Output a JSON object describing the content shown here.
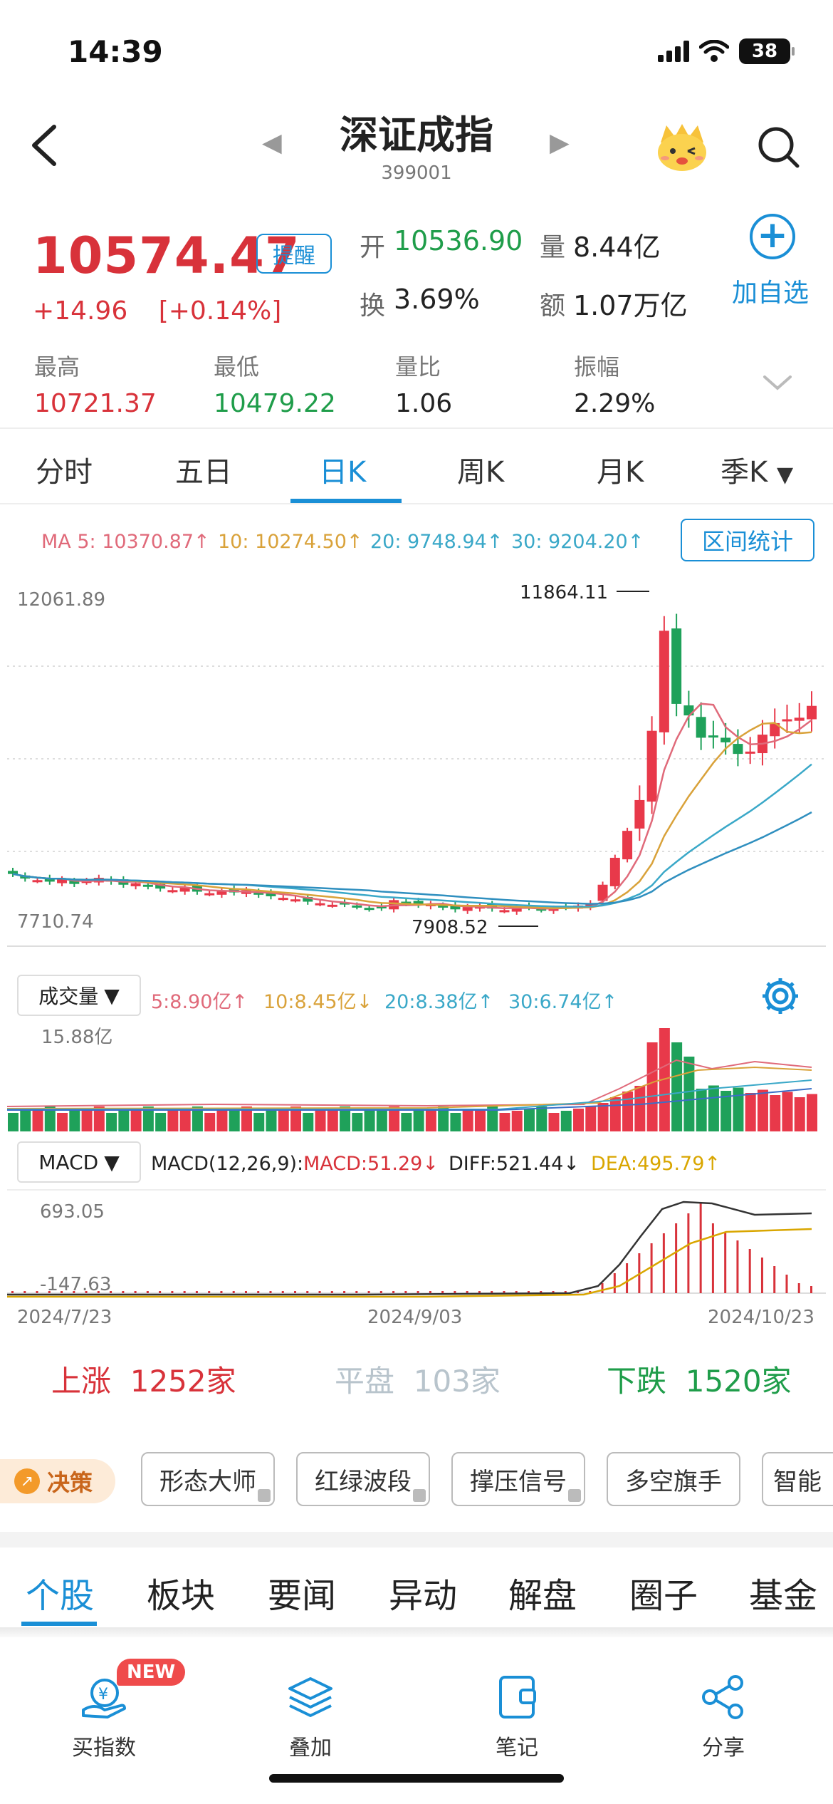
{
  "status": {
    "time": "14:39",
    "battery": "38"
  },
  "header": {
    "title": "深证成指",
    "code": "399001",
    "back": "<",
    "prev": "◀",
    "next": "▶"
  },
  "quote": {
    "price": "10574.47",
    "change": "+14.96",
    "change_pct": "[+0.14%]",
    "remind_label": "提醒",
    "open_label": "开",
    "open": "10536.90",
    "volume_label": "量",
    "volume": "8.44亿",
    "turnover_label": "换",
    "turnover": "3.69%",
    "amount_label": "额",
    "amount": "1.07万亿",
    "add_label": "加自选",
    "high_label": "最高",
    "high": "10721.37",
    "low_label": "最低",
    "low": "10479.22",
    "vol_ratio_label": "量比",
    "vol_ratio": "1.06",
    "amplitude_label": "振幅",
    "amplitude": "2.29%"
  },
  "tabs": [
    "分时",
    "五日",
    "日K",
    "周K",
    "月K",
    "季K"
  ],
  "active_tab": "日K",
  "ma_legend": {
    "ma5": "MA 5: 10370.87↑",
    "ma10": "10: 10274.50↑",
    "ma20": "20: 9748.94↑",
    "ma30": "30: 9204.20↑",
    "range_btn": "区间统计"
  },
  "volume_panel": {
    "selector": "成交量",
    "v5": "5:8.90亿↑",
    "v10": "10:8.45亿↓",
    "v20": "20:8.38亿↑",
    "v30": "30:6.74亿↑"
  },
  "macd_panel": {
    "selector": "MACD",
    "params": "MACD(12,26,9):",
    "macd": "MACD:51.29↓",
    "diff": "DIFF:521.44↓",
    "dea": "DEA:495.79↑"
  },
  "chart_data": {
    "type": "candlestick",
    "title": "",
    "ymax_label": "12061.89",
    "ymin_label": "7710.74",
    "high_marker": "11864.11",
    "low_marker": "7908.52",
    "volume_max_label": "15.88亿",
    "macd_max_label": "693.05",
    "macd_min_label": "-147.63",
    "x_labels": [
      "2024/7/23",
      "2024/9/03",
      "2024/10/23"
    ],
    "ylim": [
      7710.74,
      12061.89
    ],
    "closes": [
      8390,
      8330,
      8310,
      8290,
      8320,
      8260,
      8300,
      8340,
      8290,
      8250,
      8270,
      8230,
      8200,
      8180,
      8210,
      8160,
      8140,
      8170,
      8150,
      8180,
      8120,
      8100,
      8080,
      8060,
      8030,
      8010,
      7990,
      8000,
      7970,
      7940,
      7950,
      8050,
      8010,
      7990,
      8000,
      7960,
      7930,
      7960,
      7970,
      7940,
      7920,
      7950,
      7960,
      7930,
      7940,
      7960,
      7980,
      8010,
      8250,
      8600,
      8950,
      9350,
      10250,
      11550,
      10600,
      10450,
      10160,
      10180,
      10100,
      9950,
      9980,
      10200,
      10350,
      10400,
      10420,
      10574
    ]
  },
  "breadth": {
    "up_label": "上涨",
    "up": "1252家",
    "flat_label": "平盘",
    "flat": "103家",
    "down_label": "下跌",
    "down": "1520家"
  },
  "strategy": {
    "decision": "决策",
    "chips": [
      "形态大师",
      "红绿波段",
      "撑压信号",
      "多空旗手",
      "智能"
    ]
  },
  "news_tabs": [
    "个股",
    "板块",
    "要闻",
    "异动",
    "解盘",
    "圈子",
    "基金"
  ],
  "bottom_bar": {
    "new_badge": "NEW",
    "items": [
      "买指数",
      "叠加",
      "笔记",
      "分享"
    ]
  }
}
